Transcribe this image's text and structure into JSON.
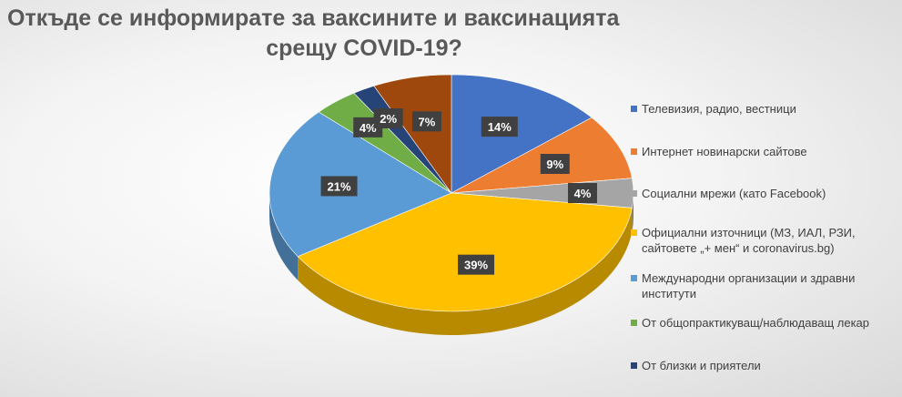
{
  "chart_data": {
    "type": "pie",
    "title_lines": [
      "Откъде се информирате за ваксините и ваксинацията",
      "срещу COVID-19?"
    ],
    "legend_position": "right",
    "slices": [
      {
        "name": "Телевизия, радио, вестници",
        "value": 14,
        "label": "14%",
        "color": "#4472C4"
      },
      {
        "name": "Интернет новинарски сайтове",
        "value": 9,
        "label": "9%",
        "color": "#ED7D31"
      },
      {
        "name": "Социални мрежи (като Facebook)",
        "value": 4,
        "label": "4%",
        "color": "#A5A5A5"
      },
      {
        "name": "Официални източници (МЗ, ИАЛ, РЗИ, сайтовете „+ мен“ и coronavirus.bg)",
        "value": 39,
        "label": "39%",
        "color": "#FFC000"
      },
      {
        "name": "Международни организации и здравни институти",
        "value": 21,
        "label": "21%",
        "color": "#5B9BD5"
      },
      {
        "name": "От общопрактикуващ/наблюдаващ лекар",
        "value": 4,
        "label": "4%",
        "color": "#70AD47"
      },
      {
        "name": "От близки и приятели",
        "value": 2,
        "label": "2%",
        "color": "#264478"
      },
      {
        "name": "",
        "value": 7,
        "label": "7%",
        "color": "#9E480E"
      }
    ]
  },
  "legend": {
    "items": [
      {
        "lines": [
          "Телевизия, радио, вестници"
        ],
        "color": "#4472C4"
      },
      {
        "lines": [
          "Интернет новинарски сайтове"
        ],
        "color": "#ED7D31"
      },
      {
        "lines": [
          "Социални мрежи (като Facebook)"
        ],
        "color": "#A5A5A5"
      },
      {
        "lines": [
          "Официални източници (МЗ, ИАЛ, РЗИ,",
          "сайтовете „+ мен“ и coronavirus.bg)"
        ],
        "color": "#FFC000"
      },
      {
        "lines": [
          "Международни организации и здравни",
          "институти"
        ],
        "color": "#5B9BD5"
      },
      {
        "lines": [
          "От общопрактикуващ/наблюдаващ лекар"
        ],
        "color": "#70AD47"
      },
      {
        "lines": [
          "От близки  и приятели"
        ],
        "color": "#264478"
      }
    ]
  }
}
